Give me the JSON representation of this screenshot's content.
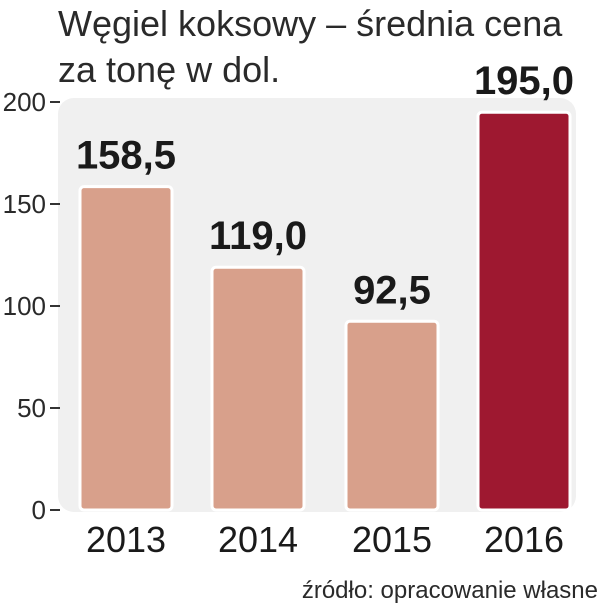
{
  "chart_data": {
    "type": "bar",
    "title_lines": [
      "Węgiel koksowy – średnia cena",
      "za tonę w dol."
    ],
    "categories": [
      "2013",
      "2014",
      "2015",
      "2016"
    ],
    "values": [
      158.5,
      119.0,
      92.5,
      195.0
    ],
    "value_labels": [
      "158,5",
      "119,0",
      "92,5",
      "195,0"
    ],
    "yticks": [
      "0",
      "50",
      "100",
      "150",
      "200"
    ],
    "ylim": [
      0,
      200
    ],
    "xlabel": "",
    "ylabel": "",
    "grid": false,
    "highlight_index": 3,
    "colors": {
      "bar": "#d8a08b",
      "highlight": "#9e1830",
      "panel": "#f0f0f0",
      "axis": "#333333"
    }
  },
  "source": "źródło: opracowanie własne"
}
